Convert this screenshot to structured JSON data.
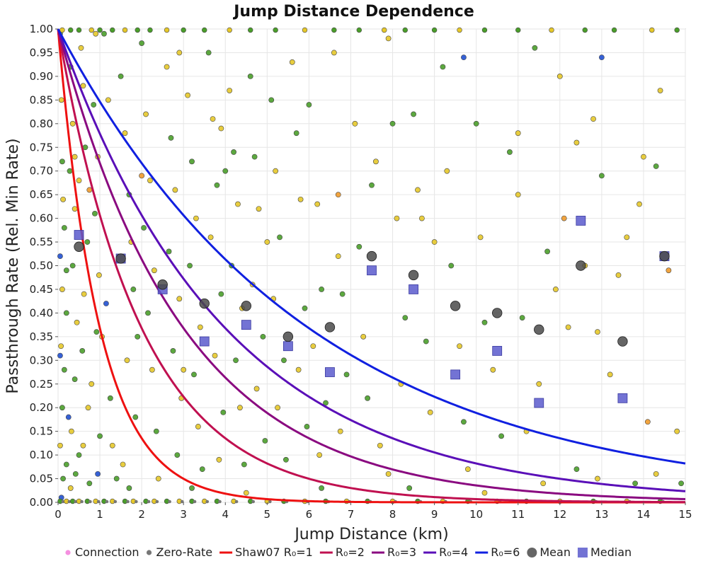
{
  "chart_data": {
    "type": "scatter",
    "title": "Jump Distance Dependence",
    "xlabel": "Jump Distance (km)",
    "ylabel": "Passthrough Rate (Rel. Min Rate)",
    "xlim": [
      0,
      15
    ],
    "ylim": [
      0,
      1
    ],
    "x_ticks": [
      0,
      1,
      2,
      3,
      4,
      5,
      6,
      7,
      8,
      9,
      10,
      11,
      12,
      13,
      14,
      15
    ],
    "y_ticks": [
      "0.00",
      "0.05",
      "0.10",
      "0.15",
      "0.20",
      "0.25",
      "0.30",
      "0.35",
      "0.40",
      "0.45",
      "0.50",
      "0.55",
      "0.60",
      "0.65",
      "0.70",
      "0.75",
      "0.80",
      "0.85",
      "0.90",
      "0.95",
      "1.00"
    ],
    "grid": true,
    "legend_position": "bottom",
    "legend": [
      "Connection",
      "Zero-Rate",
      "Shaw07 R₀=1",
      "R₀=2",
      "R₀=3",
      "R₀=4",
      "R₀=6",
      "Mean",
      "Median"
    ],
    "colors": {
      "connection": "#f590e0",
      "zero_rate": "#777777",
      "r1": "#ee1111",
      "r2": "#c01050",
      "r3": "#8a0a80",
      "r4": "#5a0fb8",
      "r6": "#1020e0",
      "mean": "#4a4a4a",
      "median": "#5a5acc"
    },
    "curves": [
      {
        "name": "Shaw07 R₀=1",
        "R0": 1,
        "formula": "exp(-x/R0)"
      },
      {
        "name": "R₀=2",
        "R0": 2,
        "formula": "exp(-x/R0)"
      },
      {
        "name": "R₀=3",
        "R0": 3,
        "formula": "exp(-x/R0)"
      },
      {
        "name": "R₀=4",
        "R0": 4,
        "formula": "exp(-x/R0)"
      },
      {
        "name": "R₀=6",
        "R0": 6,
        "formula": "exp(-x/R0)"
      }
    ],
    "mean": [
      {
        "x": 0.5,
        "y": 0.54
      },
      {
        "x": 1.5,
        "y": 0.515
      },
      {
        "x": 2.5,
        "y": 0.46
      },
      {
        "x": 3.5,
        "y": 0.42
      },
      {
        "x": 4.5,
        "y": 0.415
      },
      {
        "x": 5.5,
        "y": 0.35
      },
      {
        "x": 6.5,
        "y": 0.37
      },
      {
        "x": 7.5,
        "y": 0.52
      },
      {
        "x": 8.5,
        "y": 0.48
      },
      {
        "x": 9.5,
        "y": 0.415
      },
      {
        "x": 10.5,
        "y": 0.4
      },
      {
        "x": 11.5,
        "y": 0.365
      },
      {
        "x": 12.5,
        "y": 0.5
      },
      {
        "x": 13.5,
        "y": 0.34
      },
      {
        "x": 14.5,
        "y": 0.52
      }
    ],
    "median": [
      {
        "x": 0.5,
        "y": 0.565
      },
      {
        "x": 1.5,
        "y": 0.515
      },
      {
        "x": 2.5,
        "y": 0.45
      },
      {
        "x": 3.5,
        "y": 0.34
      },
      {
        "x": 4.5,
        "y": 0.375
      },
      {
        "x": 5.5,
        "y": 0.33
      },
      {
        "x": 6.5,
        "y": 0.275
      },
      {
        "x": 7.5,
        "y": 0.49
      },
      {
        "x": 8.5,
        "y": 0.45
      },
      {
        "x": 9.5,
        "y": 0.27
      },
      {
        "x": 10.5,
        "y": 0.32
      },
      {
        "x": 11.5,
        "y": 0.21
      },
      {
        "x": 12.5,
        "y": 0.595
      },
      {
        "x": 13.5,
        "y": 0.22
      },
      {
        "x": 14.5,
        "y": 0.52
      }
    ],
    "scatter_points": [
      {
        "x": 0.05,
        "y": 0.99,
        "c": "g"
      },
      {
        "x": 0.08,
        "y": 0.85,
        "c": "y"
      },
      {
        "x": 0.1,
        "y": 0.72,
        "c": "g"
      },
      {
        "x": 0.12,
        "y": 0.64,
        "c": "y"
      },
      {
        "x": 0.15,
        "y": 0.58,
        "c": "g"
      },
      {
        "x": 0.05,
        "y": 0.52,
        "c": "b"
      },
      {
        "x": 0.1,
        "y": 0.45,
        "c": "y"
      },
      {
        "x": 0.2,
        "y": 0.4,
        "c": "g"
      },
      {
        "x": 0.07,
        "y": 0.33,
        "c": "y"
      },
      {
        "x": 0.15,
        "y": 0.28,
        "c": "g"
      },
      {
        "x": 0.1,
        "y": 0.2,
        "c": "g"
      },
      {
        "x": 0.25,
        "y": 0.18,
        "c": "b"
      },
      {
        "x": 0.05,
        "y": 0.12,
        "c": "y"
      },
      {
        "x": 0.2,
        "y": 0.08,
        "c": "g"
      },
      {
        "x": 0.12,
        "y": 0.05,
        "c": "g"
      },
      {
        "x": 0.3,
        "y": 0.03,
        "c": "y"
      },
      {
        "x": 0.08,
        "y": 0.01,
        "c": "b"
      },
      {
        "x": 0.3,
        "y": 0.92,
        "c": "g"
      },
      {
        "x": 0.35,
        "y": 0.8,
        "c": "y"
      },
      {
        "x": 0.28,
        "y": 0.7,
        "c": "g"
      },
      {
        "x": 0.4,
        "y": 0.62,
        "c": "y"
      },
      {
        "x": 0.35,
        "y": 0.5,
        "c": "g"
      },
      {
        "x": 0.45,
        "y": 0.38,
        "c": "y"
      },
      {
        "x": 0.4,
        "y": 0.26,
        "c": "g"
      },
      {
        "x": 0.32,
        "y": 0.15,
        "c": "y"
      },
      {
        "x": 0.42,
        "y": 0.06,
        "c": "g"
      },
      {
        "x": 0.55,
        "y": 0.96,
        "c": "y"
      },
      {
        "x": 0.6,
        "y": 0.88,
        "c": "y"
      },
      {
        "x": 0.65,
        "y": 0.75,
        "c": "g"
      },
      {
        "x": 0.5,
        "y": 0.68,
        "c": "y"
      },
      {
        "x": 0.7,
        "y": 0.55,
        "c": "g"
      },
      {
        "x": 0.62,
        "y": 0.44,
        "c": "y"
      },
      {
        "x": 0.58,
        "y": 0.32,
        "c": "g"
      },
      {
        "x": 0.72,
        "y": 0.2,
        "c": "y"
      },
      {
        "x": 0.5,
        "y": 0.1,
        "c": "g"
      },
      {
        "x": 0.75,
        "y": 0.04,
        "c": "g"
      },
      {
        "x": 0.9,
        "y": 0.99,
        "c": "y"
      },
      {
        "x": 0.85,
        "y": 0.84,
        "c": "g"
      },
      {
        "x": 0.95,
        "y": 0.73,
        "c": "y"
      },
      {
        "x": 0.88,
        "y": 0.61,
        "c": "g"
      },
      {
        "x": 0.98,
        "y": 0.48,
        "c": "y"
      },
      {
        "x": 0.92,
        "y": 0.36,
        "c": "g"
      },
      {
        "x": 0.8,
        "y": 0.25,
        "c": "y"
      },
      {
        "x": 1.0,
        "y": 0.14,
        "c": "g"
      },
      {
        "x": 0.95,
        "y": 0.06,
        "c": "b"
      },
      {
        "x": 1.1,
        "y": 0.99,
        "c": "g"
      },
      {
        "x": 1.2,
        "y": 0.85,
        "c": "y"
      },
      {
        "x": 1.15,
        "y": 0.42,
        "c": "b"
      },
      {
        "x": 1.05,
        "y": 0.35,
        "c": "y"
      },
      {
        "x": 1.25,
        "y": 0.22,
        "c": "g"
      },
      {
        "x": 1.3,
        "y": 0.12,
        "c": "y"
      },
      {
        "x": 1.4,
        "y": 0.05,
        "c": "g"
      },
      {
        "x": 1.5,
        "y": 0.9,
        "c": "g"
      },
      {
        "x": 1.6,
        "y": 0.78,
        "c": "y"
      },
      {
        "x": 1.7,
        "y": 0.65,
        "c": "g"
      },
      {
        "x": 1.75,
        "y": 0.55,
        "c": "y"
      },
      {
        "x": 1.8,
        "y": 0.45,
        "c": "g"
      },
      {
        "x": 1.65,
        "y": 0.3,
        "c": "y"
      },
      {
        "x": 1.85,
        "y": 0.18,
        "c": "g"
      },
      {
        "x": 1.55,
        "y": 0.08,
        "c": "y"
      },
      {
        "x": 2.0,
        "y": 0.97,
        "c": "g"
      },
      {
        "x": 2.1,
        "y": 0.82,
        "c": "y"
      },
      {
        "x": 2.2,
        "y": 0.68,
        "c": "y"
      },
      {
        "x": 2.05,
        "y": 0.58,
        "c": "g"
      },
      {
        "x": 2.3,
        "y": 0.49,
        "c": "y"
      },
      {
        "x": 2.15,
        "y": 0.4,
        "c": "g"
      },
      {
        "x": 2.25,
        "y": 0.28,
        "c": "y"
      },
      {
        "x": 2.35,
        "y": 0.15,
        "c": "g"
      },
      {
        "x": 2.4,
        "y": 0.05,
        "c": "y"
      },
      {
        "x": 2.6,
        "y": 0.92,
        "c": "y"
      },
      {
        "x": 2.7,
        "y": 0.77,
        "c": "g"
      },
      {
        "x": 2.8,
        "y": 0.66,
        "c": "y"
      },
      {
        "x": 2.65,
        "y": 0.53,
        "c": "g"
      },
      {
        "x": 2.9,
        "y": 0.43,
        "c": "y"
      },
      {
        "x": 2.75,
        "y": 0.32,
        "c": "g"
      },
      {
        "x": 2.95,
        "y": 0.22,
        "c": "y"
      },
      {
        "x": 2.85,
        "y": 0.1,
        "c": "g"
      },
      {
        "x": 3.1,
        "y": 0.86,
        "c": "y"
      },
      {
        "x": 3.2,
        "y": 0.72,
        "c": "g"
      },
      {
        "x": 3.3,
        "y": 0.6,
        "c": "y"
      },
      {
        "x": 3.15,
        "y": 0.5,
        "c": "g"
      },
      {
        "x": 3.4,
        "y": 0.37,
        "c": "y"
      },
      {
        "x": 3.25,
        "y": 0.27,
        "c": "g"
      },
      {
        "x": 3.35,
        "y": 0.16,
        "c": "y"
      },
      {
        "x": 3.45,
        "y": 0.07,
        "c": "g"
      },
      {
        "x": 3.6,
        "y": 0.95,
        "c": "g"
      },
      {
        "x": 3.7,
        "y": 0.81,
        "c": "y"
      },
      {
        "x": 3.8,
        "y": 0.67,
        "c": "g"
      },
      {
        "x": 3.65,
        "y": 0.56,
        "c": "y"
      },
      {
        "x": 3.9,
        "y": 0.44,
        "c": "g"
      },
      {
        "x": 3.75,
        "y": 0.31,
        "c": "y"
      },
      {
        "x": 3.95,
        "y": 0.19,
        "c": "g"
      },
      {
        "x": 3.85,
        "y": 0.09,
        "c": "y"
      },
      {
        "x": 4.1,
        "y": 0.87,
        "c": "y"
      },
      {
        "x": 4.2,
        "y": 0.74,
        "c": "g"
      },
      {
        "x": 4.3,
        "y": 0.63,
        "c": "y"
      },
      {
        "x": 4.15,
        "y": 0.5,
        "c": "g"
      },
      {
        "x": 4.4,
        "y": 0.41,
        "c": "y"
      },
      {
        "x": 4.25,
        "y": 0.3,
        "c": "g"
      },
      {
        "x": 4.35,
        "y": 0.2,
        "c": "y"
      },
      {
        "x": 4.45,
        "y": 0.08,
        "c": "g"
      },
      {
        "x": 4.6,
        "y": 0.9,
        "c": "g"
      },
      {
        "x": 4.7,
        "y": 0.73,
        "c": "g"
      },
      {
        "x": 4.8,
        "y": 0.62,
        "c": "y"
      },
      {
        "x": 4.65,
        "y": 0.46,
        "c": "y"
      },
      {
        "x": 4.9,
        "y": 0.35,
        "c": "g"
      },
      {
        "x": 4.75,
        "y": 0.24,
        "c": "y"
      },
      {
        "x": 4.95,
        "y": 0.13,
        "c": "g"
      },
      {
        "x": 5.1,
        "y": 0.85,
        "c": "g"
      },
      {
        "x": 5.2,
        "y": 0.7,
        "c": "y"
      },
      {
        "x": 5.3,
        "y": 0.56,
        "c": "g"
      },
      {
        "x": 5.15,
        "y": 0.43,
        "c": "y"
      },
      {
        "x": 5.4,
        "y": 0.3,
        "c": "g"
      },
      {
        "x": 5.25,
        "y": 0.2,
        "c": "y"
      },
      {
        "x": 5.45,
        "y": 0.09,
        "c": "g"
      },
      {
        "x": 5.6,
        "y": 0.93,
        "c": "y"
      },
      {
        "x": 5.7,
        "y": 0.78,
        "c": "g"
      },
      {
        "x": 5.8,
        "y": 0.64,
        "c": "y"
      },
      {
        "x": 5.9,
        "y": 0.41,
        "c": "g"
      },
      {
        "x": 5.75,
        "y": 0.28,
        "c": "y"
      },
      {
        "x": 5.95,
        "y": 0.16,
        "c": "g"
      },
      {
        "x": 6.0,
        "y": 0.84,
        "c": "g"
      },
      {
        "x": 6.2,
        "y": 0.63,
        "c": "y"
      },
      {
        "x": 6.3,
        "y": 0.45,
        "c": "g"
      },
      {
        "x": 6.1,
        "y": 0.33,
        "c": "y"
      },
      {
        "x": 6.4,
        "y": 0.21,
        "c": "g"
      },
      {
        "x": 6.25,
        "y": 0.1,
        "c": "y"
      },
      {
        "x": 6.6,
        "y": 0.95,
        "c": "y"
      },
      {
        "x": 6.7,
        "y": 0.65,
        "c": "o"
      },
      {
        "x": 6.8,
        "y": 0.44,
        "c": "g"
      },
      {
        "x": 6.9,
        "y": 0.27,
        "c": "g"
      },
      {
        "x": 6.75,
        "y": 0.15,
        "c": "y"
      },
      {
        "x": 7.1,
        "y": 0.8,
        "c": "y"
      },
      {
        "x": 7.2,
        "y": 0.54,
        "c": "g"
      },
      {
        "x": 7.3,
        "y": 0.35,
        "c": "y"
      },
      {
        "x": 7.4,
        "y": 0.22,
        "c": "g"
      },
      {
        "x": 7.5,
        "y": 0.67,
        "c": "g"
      },
      {
        "x": 7.6,
        "y": 0.72,
        "c": "y"
      },
      {
        "x": 7.7,
        "y": 0.12,
        "c": "y"
      },
      {
        "x": 7.9,
        "y": 0.98,
        "c": "y"
      },
      {
        "x": 8.0,
        "y": 0.8,
        "c": "g"
      },
      {
        "x": 8.1,
        "y": 0.6,
        "c": "y"
      },
      {
        "x": 8.3,
        "y": 0.39,
        "c": "g"
      },
      {
        "x": 8.2,
        "y": 0.25,
        "c": "y"
      },
      {
        "x": 8.5,
        "y": 0.82,
        "c": "g"
      },
      {
        "x": 8.6,
        "y": 0.66,
        "c": "y"
      },
      {
        "x": 8.7,
        "y": 0.6,
        "c": "y"
      },
      {
        "x": 8.8,
        "y": 0.34,
        "c": "g"
      },
      {
        "x": 8.9,
        "y": 0.19,
        "c": "y"
      },
      {
        "x": 9.2,
        "y": 0.92,
        "c": "g"
      },
      {
        "x": 9.3,
        "y": 0.7,
        "c": "y"
      },
      {
        "x": 9.4,
        "y": 0.5,
        "c": "g"
      },
      {
        "x": 9.6,
        "y": 0.33,
        "c": "y"
      },
      {
        "x": 9.7,
        "y": 0.17,
        "c": "g"
      },
      {
        "x": 9.8,
        "y": 0.07,
        "c": "y"
      },
      {
        "x": 10.0,
        "y": 0.8,
        "c": "g"
      },
      {
        "x": 10.1,
        "y": 0.56,
        "c": "y"
      },
      {
        "x": 10.2,
        "y": 0.38,
        "c": "g"
      },
      {
        "x": 10.4,
        "y": 0.28,
        "c": "y"
      },
      {
        "x": 10.6,
        "y": 0.14,
        "c": "g"
      },
      {
        "x": 10.8,
        "y": 0.74,
        "c": "g"
      },
      {
        "x": 11.0,
        "y": 0.65,
        "c": "y"
      },
      {
        "x": 11.1,
        "y": 0.39,
        "c": "g"
      },
      {
        "x": 11.2,
        "y": 0.15,
        "c": "y"
      },
      {
        "x": 11.4,
        "y": 0.96,
        "c": "g"
      },
      {
        "x": 11.5,
        "y": 0.25,
        "c": "y"
      },
      {
        "x": 11.7,
        "y": 0.53,
        "c": "g"
      },
      {
        "x": 11.9,
        "y": 0.45,
        "c": "y"
      },
      {
        "x": 12.0,
        "y": 0.9,
        "c": "y"
      },
      {
        "x": 12.1,
        "y": 0.6,
        "c": "o"
      },
      {
        "x": 12.2,
        "y": 0.37,
        "c": "y"
      },
      {
        "x": 12.4,
        "y": 0.07,
        "c": "g"
      },
      {
        "x": 12.6,
        "y": 0.5,
        "c": "y"
      },
      {
        "x": 12.8,
        "y": 0.81,
        "c": "y"
      },
      {
        "x": 12.9,
        "y": 0.36,
        "c": "y"
      },
      {
        "x": 13.0,
        "y": 0.69,
        "c": "g"
      },
      {
        "x": 13.2,
        "y": 0.27,
        "c": "y"
      },
      {
        "x": 13.4,
        "y": 0.48,
        "c": "y"
      },
      {
        "x": 13.6,
        "y": 0.56,
        "c": "y"
      },
      {
        "x": 13.8,
        "y": 0.04,
        "c": "g"
      },
      {
        "x": 14.0,
        "y": 0.73,
        "c": "y"
      },
      {
        "x": 14.1,
        "y": 0.17,
        "c": "o"
      },
      {
        "x": 14.3,
        "y": 0.71,
        "c": "g"
      },
      {
        "x": 14.4,
        "y": 0.87,
        "c": "y"
      },
      {
        "x": 14.6,
        "y": 0.49,
        "c": "o"
      },
      {
        "x": 14.8,
        "y": 0.15,
        "c": "y"
      },
      {
        "x": 14.9,
        "y": 0.04,
        "c": "g"
      },
      {
        "x": 13.0,
        "y": 0.94,
        "c": "b"
      },
      {
        "x": 9.7,
        "y": 0.94,
        "c": "b"
      },
      {
        "x": 3.9,
        "y": 0.79,
        "c": "y"
      },
      {
        "x": 2.9,
        "y": 0.95,
        "c": "y"
      },
      {
        "x": 7.9,
        "y": 0.06,
        "c": "y"
      },
      {
        "x": 6.3,
        "y": 0.03,
        "c": "g"
      },
      {
        "x": 11.6,
        "y": 0.04,
        "c": "y"
      },
      {
        "x": 3.2,
        "y": 0.03,
        "c": "g"
      },
      {
        "x": 4.5,
        "y": 0.02,
        "c": "y"
      },
      {
        "x": 1.7,
        "y": 0.03,
        "c": "g"
      },
      {
        "x": 10.2,
        "y": 0.02,
        "c": "y"
      },
      {
        "x": 8.4,
        "y": 0.03,
        "c": "g"
      },
      {
        "x": 12.9,
        "y": 0.05,
        "c": "y"
      },
      {
        "x": 14.3,
        "y": 0.06,
        "c": "y"
      },
      {
        "x": 0.4,
        "y": 0.73,
        "c": "y"
      },
      {
        "x": 0.2,
        "y": 0.49,
        "c": "g"
      },
      {
        "x": 0.6,
        "y": 0.12,
        "c": "y"
      },
      {
        "x": 0.75,
        "y": 0.66,
        "c": "o"
      },
      {
        "x": 1.9,
        "y": 0.35,
        "c": "g"
      },
      {
        "x": 2.0,
        "y": 0.69,
        "c": "o"
      },
      {
        "x": 5.0,
        "y": 0.55,
        "c": "y"
      },
      {
        "x": 6.7,
        "y": 0.52,
        "c": "y"
      },
      {
        "x": 9.0,
        "y": 0.55,
        "c": "y"
      },
      {
        "x": 11.0,
        "y": 0.78,
        "c": "y"
      },
      {
        "x": 12.4,
        "y": 0.76,
        "c": "y"
      },
      {
        "x": 13.9,
        "y": 0.63,
        "c": "y"
      },
      {
        "x": 4.0,
        "y": 0.7,
        "c": "g"
      },
      {
        "x": 3.0,
        "y": 0.28,
        "c": "y"
      },
      {
        "x": 0.05,
        "y": 0.31,
        "c": "b"
      }
    ],
    "top_edge_points": [
      0.1,
      0.3,
      0.5,
      0.8,
      1.0,
      1.3,
      1.6,
      1.9,
      2.2,
      2.6,
      3.0,
      3.5,
      4.1,
      4.6,
      5.2,
      5.9,
      6.6,
      7.2,
      7.8,
      8.3,
      9.0,
      9.6,
      10.2,
      11.0,
      11.8,
      12.6,
      13.3,
      14.2,
      14.8
    ],
    "bottom_edge_points": [
      0.05,
      0.2,
      0.35,
      0.5,
      0.7,
      0.9,
      1.1,
      1.3,
      1.6,
      1.8,
      2.1,
      2.3,
      2.6,
      2.9,
      3.2,
      3.5,
      3.8,
      4.2,
      4.6,
      5.0,
      5.4,
      5.9,
      6.4,
      6.9,
      7.4,
      8.0,
      8.6,
      9.2,
      9.8,
      10.5,
      11.2,
      12.0,
      12.8,
      13.6,
      14.4
    ]
  }
}
